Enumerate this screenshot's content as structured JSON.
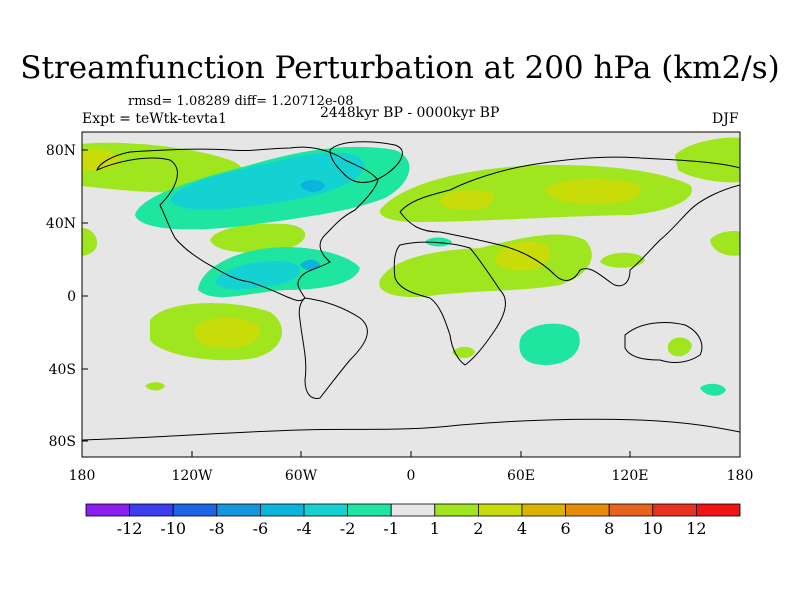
{
  "title": "Streamfunction Perturbation at 200 hPa (km2/s)",
  "stats": "rmsd= 1.08289 diff= 1.20712e-08",
  "expt": "Expt = teWtk-tevta1",
  "period": "2448kyr BP - 0000kyr BP",
  "season": "DJF",
  "lat_ticks": [
    "80N",
    "40N",
    "0",
    "40S",
    "80S"
  ],
  "lon_ticks": [
    "180",
    "120W",
    "60W",
    "0",
    "60E",
    "120E",
    "180"
  ],
  "colorbar": {
    "labels": [
      "-12",
      "-10",
      "-8",
      "-6",
      "-4",
      "-2",
      "-1",
      "1",
      "2",
      "4",
      "6",
      "8",
      "10",
      "12"
    ],
    "colors": [
      "#8a1ef0",
      "#3c3cf0",
      "#1e64e6",
      "#1496dc",
      "#0ab4dc",
      "#14d2d2",
      "#1ee6a0",
      "#e6e6e6",
      "#a0e61e",
      "#c8dc0a",
      "#dcb400",
      "#e68c0a",
      "#e6641e",
      "#e6321e",
      "#f01414"
    ]
  },
  "colors": {
    "ocean_land": "#e6e6e6",
    "coast": "#000000"
  },
  "chart_data": {
    "type": "heatmap",
    "title": "Streamfunction Perturbation at 200 hPa (km2/s)",
    "xlim": [
      -180,
      180
    ],
    "ylim": [
      -90,
      90
    ],
    "anomalies": [
      {
        "lon": -160,
        "lat": 70,
        "level": 2
      },
      {
        "lon": -175,
        "lat": 76,
        "level": 2
      },
      {
        "lon": -100,
        "lat": 70,
        "level": -2
      },
      {
        "lon": -70,
        "lat": 62,
        "level": -4
      },
      {
        "lon": -60,
        "lat": 55,
        "level": -4
      },
      {
        "lon": -85,
        "lat": 58,
        "level": -4
      },
      {
        "lon": -40,
        "lat": 72,
        "level": -2
      },
      {
        "lon": -75,
        "lat": 33,
        "level": 2
      },
      {
        "lon": -100,
        "lat": 15,
        "level": -4
      },
      {
        "lon": -60,
        "lat": 15,
        "level": -2
      },
      {
        "lon": 40,
        "lat": 50,
        "level": 2
      },
      {
        "lon": 90,
        "lat": 55,
        "level": 4
      },
      {
        "lon": 45,
        "lat": 25,
        "level": 2
      },
      {
        "lon": 60,
        "lat": 28,
        "level": 4
      },
      {
        "lon": -120,
        "lat": -20,
        "level": 2
      },
      {
        "lon": -120,
        "lat": -25,
        "level": 4
      },
      {
        "lon": 60,
        "lat": -30,
        "level": -2
      },
      {
        "lon": 145,
        "lat": -35,
        "level": 2
      },
      {
        "lon": 160,
        "lat": 75,
        "level": 2
      },
      {
        "lon": 165,
        "lat": 30,
        "level": -1
      }
    ]
  }
}
